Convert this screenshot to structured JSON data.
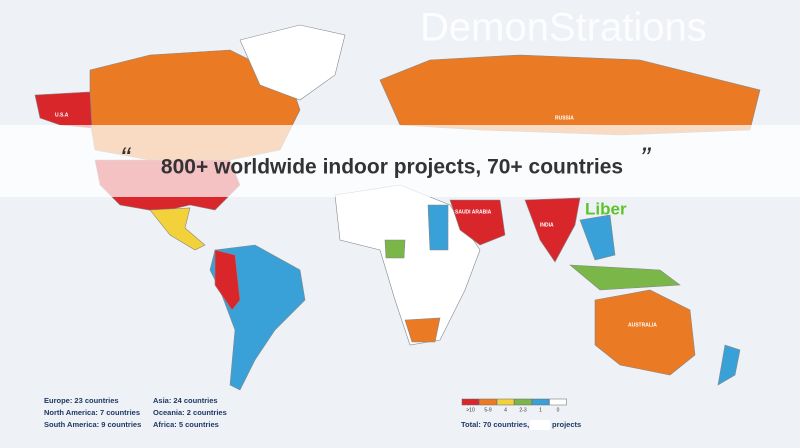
{
  "header": {
    "title": "DemonStrations"
  },
  "banner": {
    "open_quote": "“",
    "text": "800+ worldwide indoor projects, 70+ countries",
    "close_quote": "”"
  },
  "map_labels": [
    "U.S.A",
    "RUSSIA",
    "AUSTRALIA",
    "INDIA",
    "SAUDI ARABIA"
  ],
  "watermark": "Liber",
  "stats": [
    "Europe: 23 countries",
    "North America: 7 countries",
    "South America: 9 countries",
    "Asia: 24 countries",
    "Oceania: 2 countries",
    "Africa: 5 countries"
  ],
  "legend": [
    {
      "label": ">10",
      "color": "#d9262b"
    },
    {
      "label": "5-9",
      "color": "#ea7a24"
    },
    {
      "label": "4",
      "color": "#f2d13a"
    },
    {
      "label": "2-3",
      "color": "#7ab648"
    },
    {
      "label": "1",
      "color": "#3aa0d8"
    },
    {
      "label": "0",
      "color": "#ffffff"
    }
  ],
  "total": {
    "prefix": "Total: 70 countries,",
    "suffix": "projects"
  }
}
